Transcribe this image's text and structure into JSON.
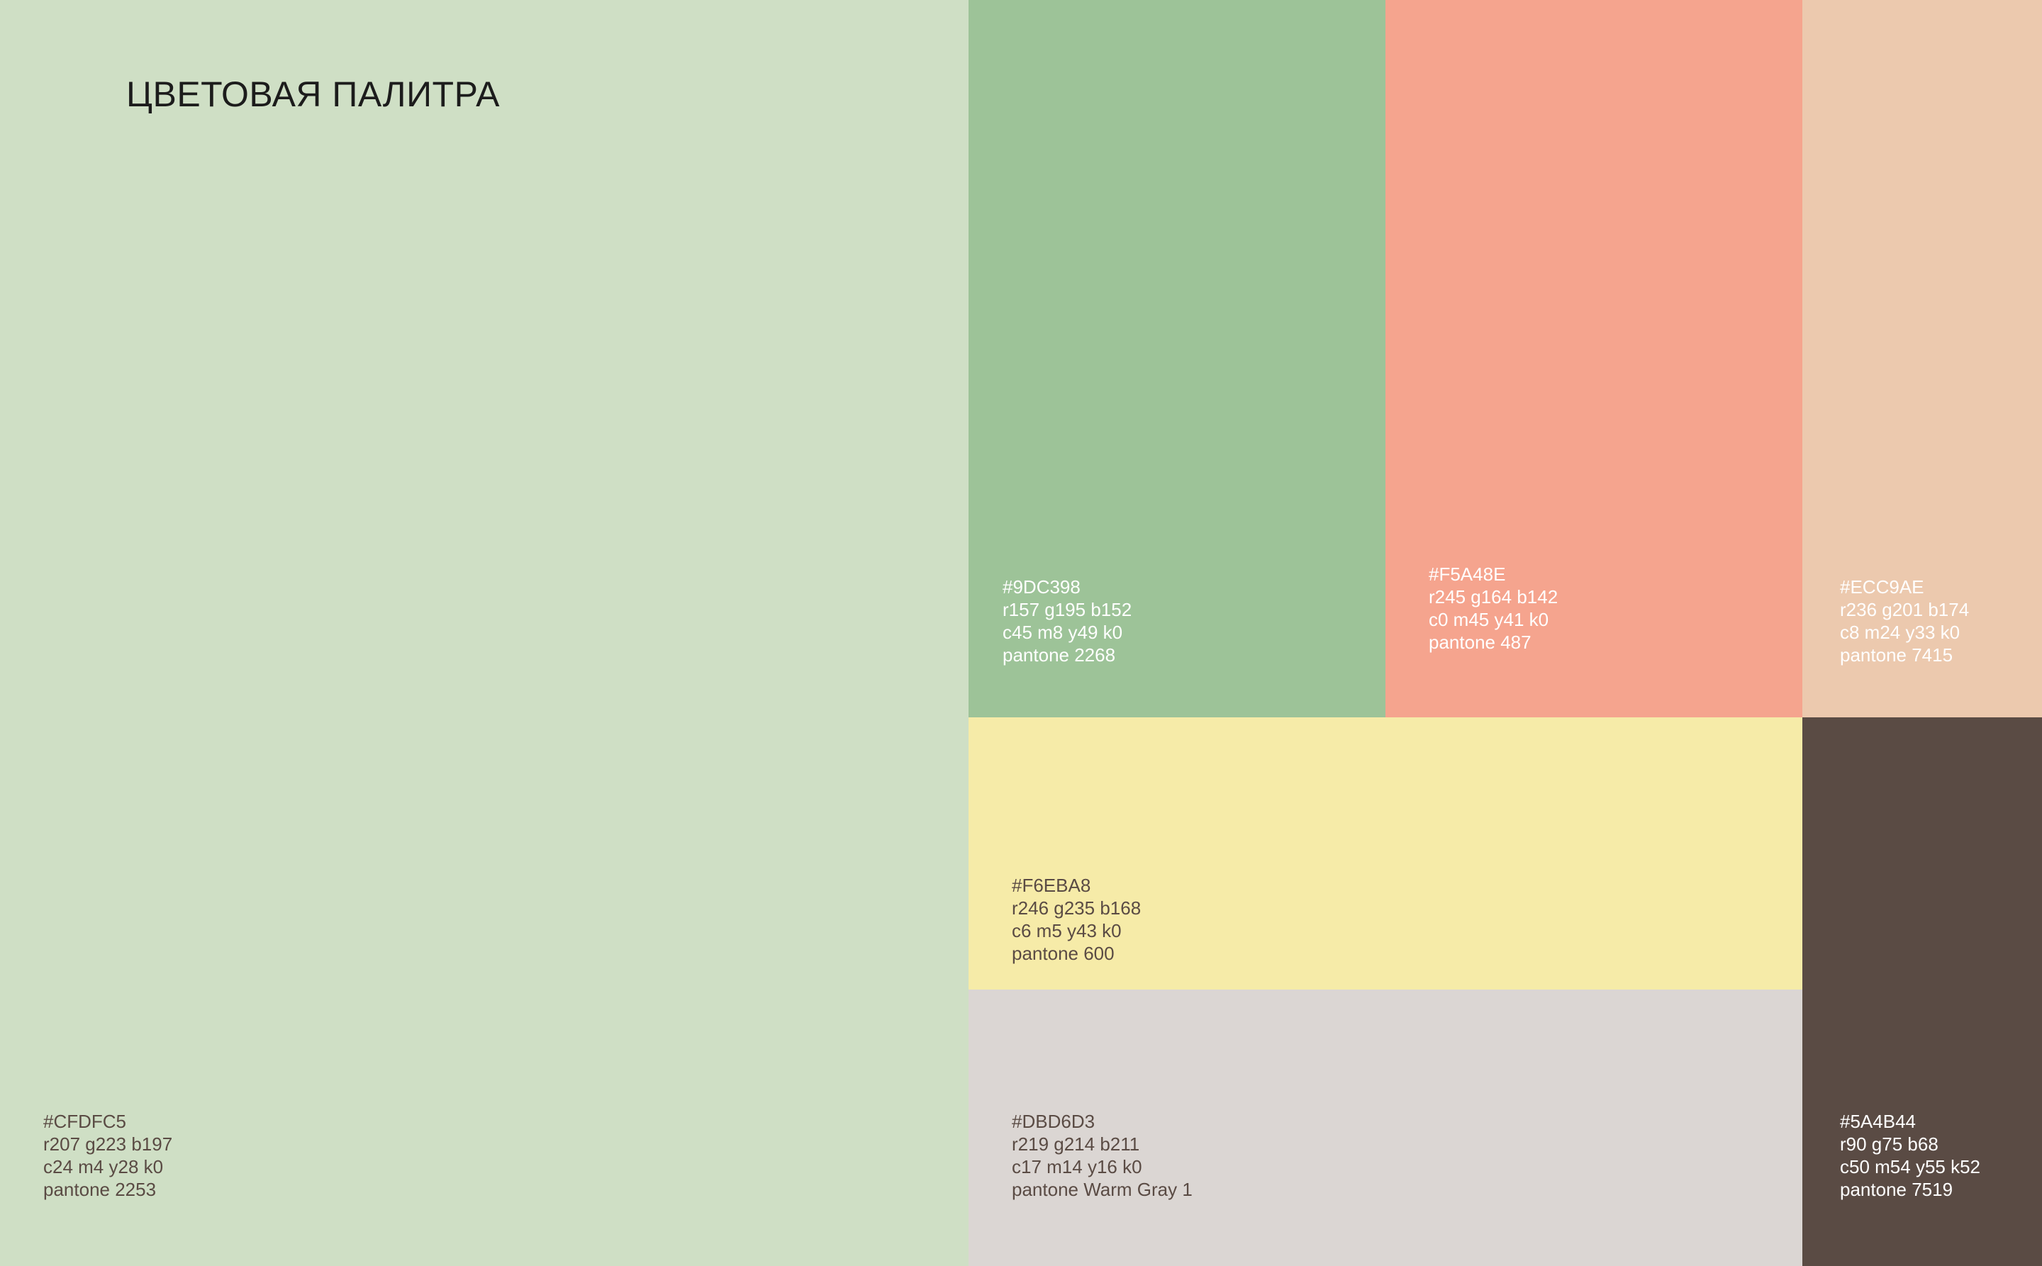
{
  "title": "ЦВЕТОВАЯ ПАЛИТРА",
  "swatches": [
    {
      "hex": "#CFDFC5",
      "rgb": "r207 g223 b197",
      "cmyk": "c24 m4 y28 k0",
      "pantone": "pantone 2253",
      "text_color": "#5A4B44"
    },
    {
      "hex": "#9DC398",
      "rgb": "r157 g195 b152",
      "cmyk": "c45 m8 y49 k0",
      "pantone": "pantone 2268",
      "text_color": "#FFFFFF"
    },
    {
      "hex": "#F5A48E",
      "rgb": "r245 g164 b142",
      "cmyk": "c0 m45 y41 k0",
      "pantone": "pantone 487",
      "text_color": "#FFFFFF"
    },
    {
      "hex": "#ECC9AE",
      "rgb": "r236 g201 b174",
      "cmyk": "c8 m24 y33 k0",
      "pantone": "pantone 7415",
      "text_color": "#FFFFFF"
    },
    {
      "hex": "#F6EBA8",
      "rgb": "r246 g235 b168",
      "cmyk": "c6 m5 y43 k0",
      "pantone": "pantone 600",
      "text_color": "#5A4B44"
    },
    {
      "hex": "#DBD6D3",
      "rgb": "r219 g214 b211",
      "cmyk": "c17 m14 y16 k0",
      "pantone": "pantone Warm Gray 1",
      "text_color": "#5A4B44"
    },
    {
      "hex": "#5A4B44",
      "rgb": "r90 g75 b68",
      "cmyk": "c50 m54 y55 k52",
      "pantone": "pantone 7519",
      "text_color": "#FFFFFF"
    }
  ]
}
